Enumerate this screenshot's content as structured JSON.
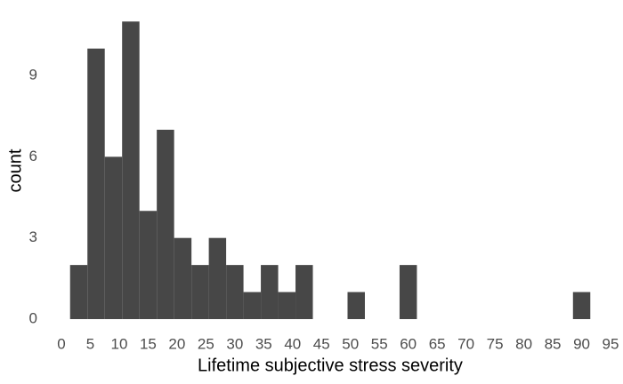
{
  "chart_data": {
    "type": "histogram",
    "x_label": "Lifetime subjective stress severity",
    "y_label": "count",
    "bins": [
      1.5,
      4.5,
      7.5,
      10.5,
      13.5,
      16.5,
      19.5,
      22.5,
      25.5,
      28.5,
      31.5,
      34.5,
      37.5,
      40.5,
      43.5,
      46.5,
      49.5,
      52.5,
      55.5,
      58.5,
      61.5,
      64.5,
      67.5,
      70.5,
      73.5,
      76.5,
      79.5,
      82.5,
      85.5,
      88.5,
      91.5
    ],
    "counts": [
      2,
      10,
      6,
      11,
      4,
      7,
      3,
      2,
      3,
      2,
      1,
      2,
      1,
      2,
      0,
      0,
      1,
      0,
      0,
      2,
      0,
      0,
      0,
      0,
      0,
      0,
      0,
      0,
      0,
      1
    ],
    "color": "#474747",
    "xlim": [
      0,
      95
    ],
    "xticks": [
      0,
      5,
      10,
      15,
      20,
      25,
      30,
      35,
      40,
      45,
      50,
      55,
      60,
      65,
      70,
      75,
      80,
      85,
      90,
      95
    ],
    "ylim": [
      0,
      11.5
    ],
    "yticks": [
      0,
      3,
      6,
      9
    ],
    "grid": false
  }
}
